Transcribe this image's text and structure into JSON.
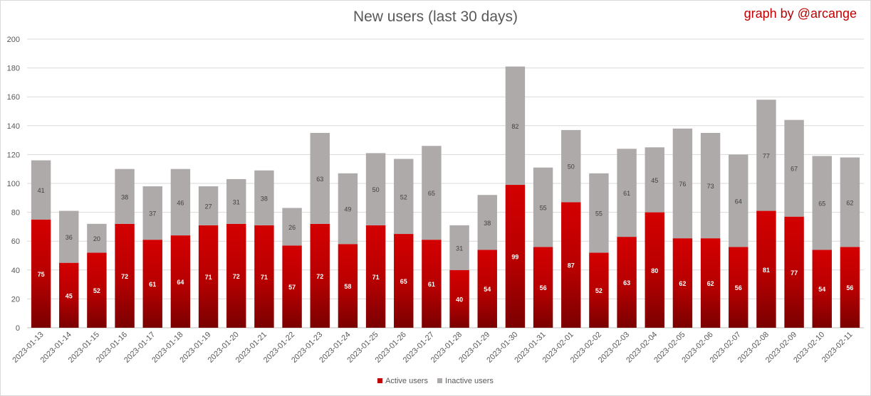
{
  "chart_data": {
    "type": "bar",
    "stacked": true,
    "title": "New users (last 30 days)",
    "credit": "graph by @arcange",
    "categories": [
      "2023-01-13",
      "2023-01-14",
      "2023-01-15",
      "2023-01-16",
      "2023-01-17",
      "2023-01-18",
      "2023-01-19",
      "2023-01-20",
      "2023-01-21",
      "2023-01-22",
      "2023-01-23",
      "2023-01-24",
      "2023-01-25",
      "2023-01-26",
      "2023-01-27",
      "2023-01-28",
      "2023-01-29",
      "2023-01-30",
      "2023-01-31",
      "2023-02-01",
      "2023-02-02",
      "2023-02-03",
      "2023-02-04",
      "2023-02-05",
      "2023-02-06",
      "2023-02-07",
      "2023-02-08",
      "2023-02-09",
      "2023-02-10",
      "2023-02-11"
    ],
    "series": [
      {
        "name": "Active users",
        "color": "#c00000",
        "values": [
          75,
          45,
          52,
          72,
          61,
          64,
          71,
          72,
          71,
          57,
          72,
          58,
          71,
          65,
          61,
          40,
          54,
          99,
          56,
          87,
          52,
          63,
          80,
          62,
          62,
          56,
          81,
          77,
          54,
          56
        ]
      },
      {
        "name": "Inactive users",
        "color": "#aeaaaa",
        "values": [
          41,
          36,
          20,
          38,
          37,
          46,
          27,
          31,
          38,
          26,
          63,
          49,
          50,
          52,
          65,
          31,
          38,
          82,
          55,
          50,
          55,
          61,
          45,
          76,
          73,
          64,
          77,
          67,
          65,
          62
        ]
      }
    ],
    "ylim": [
      0,
      200
    ],
    "yticks": [
      0,
      20,
      40,
      60,
      80,
      100,
      120,
      140,
      160,
      180,
      200
    ],
    "grid": true,
    "legend": "bottom"
  }
}
